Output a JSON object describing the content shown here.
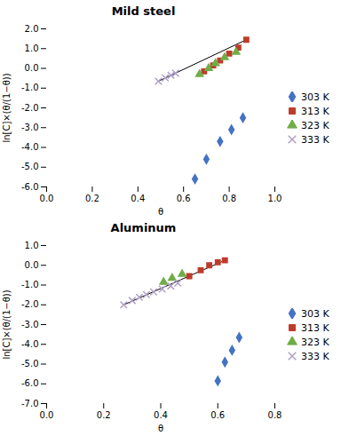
{
  "chart_data": [
    {
      "type": "scatter",
      "title": "Mild steel",
      "xlabel": "θ",
      "ylabel": "ln[C]×(θ/(1−θ))",
      "xlim": [
        0,
        1.0
      ],
      "xticks": [
        {
          "value": 0,
          "label": "0.0"
        },
        0.2,
        0.4,
        0.6,
        0.8,
        {
          "value": 1.0,
          "label": "1.0"
        }
      ],
      "ylim": [
        -6.0,
        2.0
      ],
      "yticks": [
        {
          "value": -6.0,
          "label": "-6.0"
        },
        {
          "value": -5.0,
          "label": "-5.0"
        },
        {
          "value": -4.0,
          "label": "-4.0"
        },
        {
          "value": -3.0,
          "label": "-3.0"
        },
        {
          "value": -2.0,
          "label": "-2.0"
        },
        {
          "value": -1.0,
          "label": "-1.0"
        },
        {
          "value": 0.0,
          "label": "0.0"
        },
        {
          "value": 1.0,
          "label": "1.0"
        },
        {
          "value": 2.0,
          "label": "2.0"
        }
      ],
      "legend": "right",
      "series": [
        {
          "type": "line",
          "color": "#000000",
          "x": [
            0.49,
            0.875
          ],
          "values": [
            -0.65,
            1.45
          ]
        },
        {
          "name": "303 K",
          "color": "#4472C4",
          "marker": "diamond",
          "x": [
            0.65,
            0.7,
            0.76,
            0.81,
            0.86
          ],
          "values": [
            -5.6,
            -4.6,
            -3.7,
            -3.1,
            -2.5
          ]
        },
        {
          "name": "313 K",
          "color": "#BE3B2A",
          "marker": "square",
          "x": [
            0.69,
            0.73,
            0.76,
            0.8,
            0.84,
            0.875
          ],
          "values": [
            -0.15,
            0.15,
            0.4,
            0.75,
            1.05,
            1.45
          ]
        },
        {
          "name": "323 K",
          "color": "#70AD47",
          "marker": "triangle",
          "x": [
            0.67,
            0.71,
            0.74,
            0.78,
            0.83
          ],
          "values": [
            -0.3,
            0.0,
            0.25,
            0.55,
            0.82
          ]
        },
        {
          "name": "333 K",
          "color": "#B0A0C8",
          "marker": "times",
          "x": [
            0.49,
            0.52,
            0.545,
            0.565
          ],
          "values": [
            -0.65,
            -0.48,
            -0.35,
            -0.25
          ]
        }
      ]
    },
    {
      "type": "scatter",
      "title": "Aluminum",
      "xlabel": "θ",
      "ylabel": "ln[C]×(θ/(1−θ))",
      "xlim": [
        0,
        0.8
      ],
      "xticks": [
        {
          "value": 0,
          "label": "0.0"
        },
        0.2,
        0.4,
        0.6,
        0.8
      ],
      "ylim": [
        -7.0,
        1.0
      ],
      "yticks": [
        {
          "value": -7.0,
          "label": "-7.0"
        },
        {
          "value": -6.0,
          "label": "-6.0"
        },
        {
          "value": -5.0,
          "label": "-5.0"
        },
        {
          "value": -4.0,
          "label": "-4.0"
        },
        {
          "value": -3.0,
          "label": "-3.0"
        },
        {
          "value": -2.0,
          "label": "-2.0"
        },
        {
          "value": -1.0,
          "label": "-1.0"
        },
        {
          "value": 0.0,
          "label": "0.0"
        },
        {
          "value": 1.0,
          "label": "1.0"
        }
      ],
      "legend": "right",
      "series": [
        {
          "type": "line",
          "color": "#000000",
          "x": [
            0.27,
            0.625
          ],
          "values": [
            -2.0,
            0.25
          ]
        },
        {
          "name": "303 K",
          "color": "#4472C4",
          "marker": "diamond",
          "x": [
            0.6,
            0.625,
            0.65,
            0.675
          ],
          "values": [
            -5.85,
            -4.9,
            -4.3,
            -3.65
          ]
        },
        {
          "name": "313 K",
          "color": "#BE3B2A",
          "marker": "square",
          "x": [
            0.5,
            0.54,
            0.57,
            0.6,
            0.625
          ],
          "values": [
            -0.55,
            -0.25,
            0.0,
            0.15,
            0.25
          ]
        },
        {
          "name": "323 K",
          "color": "#70AD47",
          "marker": "triangle",
          "x": [
            0.41,
            0.44,
            0.475
          ],
          "values": [
            -0.85,
            -0.65,
            -0.45
          ]
        },
        {
          "name": "333 K",
          "color": "#B0A0C8",
          "marker": "times",
          "x": [
            0.27,
            0.3,
            0.325,
            0.35,
            0.375,
            0.405,
            0.435,
            0.46
          ],
          "values": [
            -2.0,
            -1.78,
            -1.62,
            -1.48,
            -1.35,
            -1.2,
            -1.05,
            -0.9
          ]
        }
      ]
    }
  ]
}
